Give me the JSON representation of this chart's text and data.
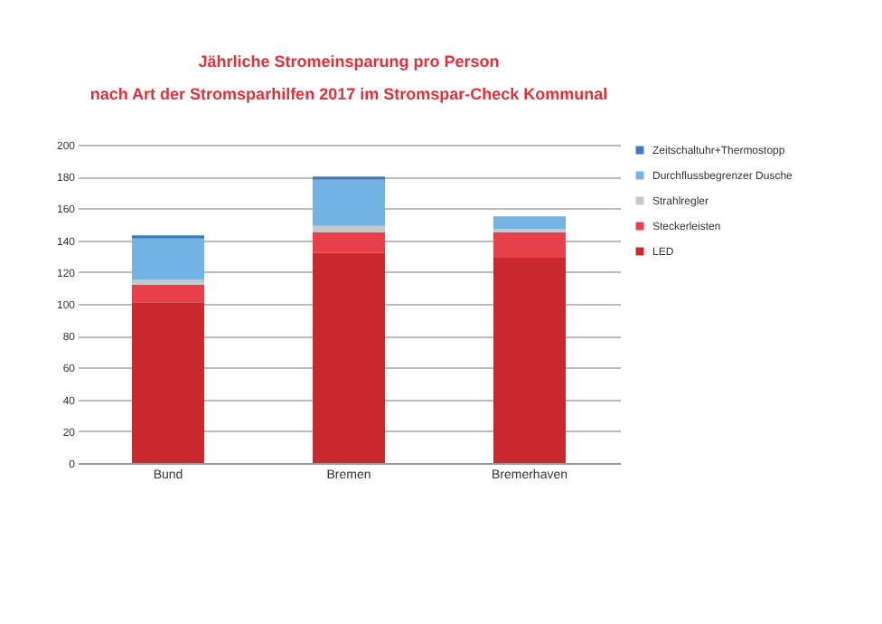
{
  "chart_data": {
    "type": "bar",
    "title": "Jährliche Stromeinsparung pro Person",
    "subtitle": "nach Art der Stromsparhilfen 2017 im Stromspar-Check Kommunal",
    "categories": [
      "Bund",
      "Bremen",
      "Bremerhaven"
    ],
    "stacked": true,
    "series": [
      {
        "name": "LED",
        "color": "#c9282d",
        "values": [
          101,
          132,
          129
        ]
      },
      {
        "name": "Steckerleisten",
        "color": "#e8404a",
        "values": [
          11,
          13,
          16
        ]
      },
      {
        "name": "Strahlregler",
        "color": "#c8c8c8",
        "values": [
          3,
          4,
          2
        ]
      },
      {
        "name": "Durchflussbegrenzer Dusche",
        "color": "#74b4e4",
        "values": [
          26,
          29,
          8
        ]
      },
      {
        "name": "Zeitschaltuhr+Thermostopp",
        "color": "#3a7cc0",
        "values": [
          2,
          2,
          0
        ]
      }
    ],
    "ylim": [
      0,
      200
    ],
    "yticks": [
      0,
      20,
      40,
      60,
      80,
      100,
      120,
      140,
      160,
      180,
      200
    ],
    "grid": "y",
    "legend": "right"
  }
}
